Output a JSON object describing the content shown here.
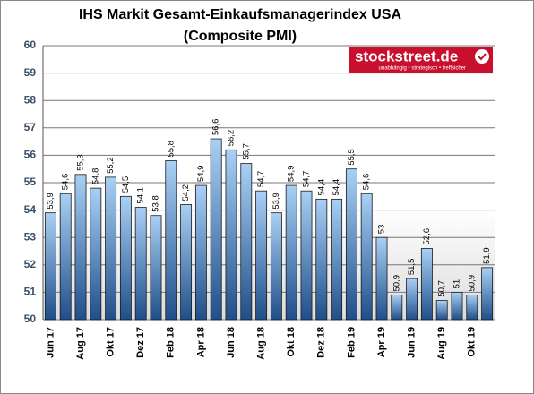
{
  "chart_data": {
    "type": "bar",
    "title": "IHS Markit Gesamt-Einkaufsmanagerindex USA",
    "subtitle": "(Composite PMI)",
    "logo": {
      "name": "stockstreet.de",
      "tagline": "unabhängig • strategisch • treffsicher"
    },
    "categories": [
      "Jun 17",
      null,
      "Aug 17",
      null,
      "Okt 17",
      null,
      "Dez 17",
      null,
      "Feb 18",
      null,
      "Apr 18",
      null,
      "Jun 18",
      null,
      "Aug 18",
      null,
      "Okt 18",
      null,
      "Dez 18",
      null,
      "Feb 19",
      null,
      "Apr 19",
      null,
      "Jun 19",
      null,
      "Aug 19",
      null,
      "Okt 19",
      null
    ],
    "values": [
      53.9,
      54.6,
      55.3,
      54.8,
      55.2,
      54.5,
      54.1,
      53.8,
      55.8,
      54.2,
      54.9,
      56.6,
      56.2,
      55.7,
      54.7,
      53.9,
      54.9,
      54.7,
      54.4,
      54.4,
      55.5,
      54.6,
      53,
      50.9,
      51.5,
      52.6,
      50.7,
      51,
      50.9,
      51.9
    ],
    "value_labels": [
      "53,9",
      "54,6",
      "55,3",
      "54,8",
      "55,2",
      "54,5",
      "54,1",
      "53,8",
      "55,8",
      "54,2",
      "54,9",
      "56,6",
      "56,2",
      "55,7",
      "54,7",
      "53,9",
      "54,9",
      "54,7",
      "54,4",
      "54,4",
      "55,5",
      "54,6",
      "53",
      "50,9",
      "51,5",
      "52,6",
      "50,7",
      "51",
      "50,9",
      "51,9"
    ],
    "color": "#4f8fd0",
    "ylim": [
      50,
      60
    ],
    "yticks": [
      50,
      51,
      52,
      53,
      54,
      55,
      56,
      57,
      58,
      59,
      60
    ],
    "grid": true
  }
}
